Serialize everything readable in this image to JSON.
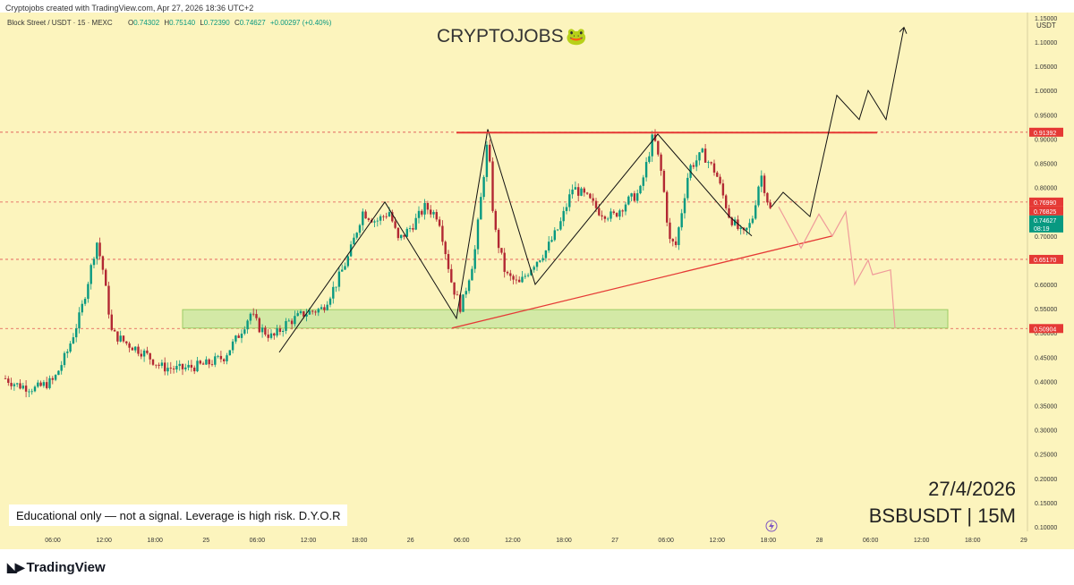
{
  "header": {
    "credit": "Cryptojobs created with TradingView.com, Apr 27, 2026 18:36 UTC+2",
    "symbol_line": "Block Street / USDT · 15 · MEXC",
    "ohlc": {
      "o_label": "O",
      "o": "0.74302",
      "h_label": "H",
      "h": "0.75140",
      "l_label": "L",
      "l": "0.72390",
      "c_label": "C",
      "c": "0.74627",
      "change": "+0.00297 (+0.40%)"
    }
  },
  "chart_title": "CRYPTOJOBS",
  "title_emoji": "🐸",
  "currency": "USDT",
  "disclaimer": "Educational only — not a signal. Leverage is high risk. D.Y.O.R",
  "date_stamp": "27/4/2026",
  "pair_stamp": "BSBUSDT | 15M",
  "footer": {
    "brand": "TradingView"
  },
  "colors": {
    "background": "#fcf4bd",
    "up": "#089981",
    "down": "#b22833",
    "resistance": "#e53935",
    "support_zone": "#c8e6a0",
    "projection_down": "#ef9a9a",
    "axis_label_red": "#e53935"
  },
  "chart_data": {
    "type": "candlestick",
    "ylim": [
      0.1,
      1.17
    ],
    "y_ticks": [
      "1.15000",
      "1.10000",
      "1.05000",
      "1.00000",
      "0.95000",
      "0.90000",
      "0.85000",
      "0.80000",
      "0.75000",
      "0.70000",
      "0.65000",
      "0.60000",
      "0.55000",
      "0.50000",
      "0.45000",
      "0.40000",
      "0.35000",
      "0.30000",
      "0.25000",
      "0.20000",
      "0.15000",
      "0.10000"
    ],
    "x_ticks": [
      "06:00",
      "12:00",
      "18:00",
      "25",
      "06:00",
      "12:00",
      "18:00",
      "26",
      "06:00",
      "12:00",
      "18:00",
      "27",
      "06:00",
      "12:00",
      "18:00",
      "28",
      "06:00",
      "12:00",
      "18:00",
      "29"
    ],
    "price_labels": [
      {
        "value": "0.91392",
        "role": "resistance"
      },
      {
        "value": "0.76990",
        "role": "level"
      },
      {
        "value": "0.76825",
        "role": "current"
      },
      {
        "value": "0.74627",
        "role": "last"
      },
      {
        "value": "08:19",
        "role": "countdown"
      },
      {
        "value": "0.65170",
        "role": "level"
      },
      {
        "value": "0.50904",
        "role": "support"
      }
    ],
    "levels": [
      0.91392,
      0.7699,
      0.6517,
      0.50904
    ],
    "support_zone": [
      0.51,
      0.548
    ],
    "price_path": [
      [
        0,
        0.412
      ],
      [
        20,
        0.392
      ],
      [
        40,
        0.385
      ],
      [
        60,
        0.402
      ],
      [
        75,
        0.46
      ],
      [
        90,
        0.54
      ],
      [
        100,
        0.62
      ],
      [
        108,
        0.69
      ],
      [
        115,
        0.63
      ],
      [
        125,
        0.5
      ],
      [
        140,
        0.48
      ],
      [
        160,
        0.46
      ],
      [
        180,
        0.43
      ],
      [
        200,
        0.425
      ],
      [
        215,
        0.43
      ],
      [
        230,
        0.435
      ],
      [
        250,
        0.45
      ],
      [
        265,
        0.49
      ],
      [
        280,
        0.54
      ],
      [
        290,
        0.51
      ],
      [
        305,
        0.49
      ],
      [
        320,
        0.52
      ],
      [
        340,
        0.54
      ],
      [
        360,
        0.55
      ],
      [
        375,
        0.6
      ],
      [
        390,
        0.66
      ],
      [
        405,
        0.75
      ],
      [
        420,
        0.73
      ],
      [
        435,
        0.75
      ],
      [
        445,
        0.69
      ],
      [
        460,
        0.72
      ],
      [
        475,
        0.76
      ],
      [
        490,
        0.74
      ],
      [
        505,
        0.6
      ],
      [
        515,
        0.55
      ],
      [
        530,
        0.66
      ],
      [
        545,
        0.9
      ],
      [
        552,
        0.72
      ],
      [
        565,
        0.62
      ],
      [
        580,
        0.6
      ],
      [
        595,
        0.64
      ],
      [
        610,
        0.67
      ],
      [
        625,
        0.72
      ],
      [
        640,
        0.8
      ],
      [
        655,
        0.78
      ],
      [
        670,
        0.75
      ],
      [
        685,
        0.74
      ],
      [
        700,
        0.77
      ],
      [
        715,
        0.79
      ],
      [
        730,
        0.91
      ],
      [
        740,
        0.82
      ],
      [
        748,
        0.69
      ],
      [
        755,
        0.68
      ],
      [
        770,
        0.84
      ],
      [
        785,
        0.87
      ],
      [
        800,
        0.83
      ],
      [
        815,
        0.74
      ],
      [
        830,
        0.7
      ],
      [
        840,
        0.73
      ],
      [
        850,
        0.83
      ],
      [
        858,
        0.77
      ],
      [
        862,
        0.746
      ]
    ],
    "projection_up": [
      [
        862,
        0.76
      ],
      [
        875,
        0.79
      ],
      [
        905,
        0.74
      ],
      [
        935,
        0.99
      ],
      [
        960,
        0.94
      ],
      [
        970,
        1.0
      ],
      [
        990,
        0.94
      ],
      [
        1010,
        1.13
      ]
    ],
    "projection_down": [
      [
        870,
        0.76
      ],
      [
        895,
        0.675
      ],
      [
        915,
        0.745
      ],
      [
        930,
        0.7
      ],
      [
        945,
        0.75
      ],
      [
        955,
        0.6
      ],
      [
        970,
        0.65
      ],
      [
        975,
        0.62
      ],
      [
        995,
        0.63
      ],
      [
        1000,
        0.51
      ]
    ],
    "pattern_lines": [
      [
        [
          312,
          0.46
        ],
        [
          430,
          0.77
        ],
        [
          510,
          0.53
        ],
        [
          545,
          0.92
        ],
        [
          598,
          0.6
        ],
        [
          735,
          0.91
        ],
        [
          815,
          0.74
        ],
        [
          840,
          0.7
        ]
      ],
      [
        [
          505,
          0.51
        ],
        [
          930,
          0.7
        ]
      ],
      [
        [
          510,
          0.913
        ],
        [
          980,
          0.913
        ]
      ]
    ]
  }
}
